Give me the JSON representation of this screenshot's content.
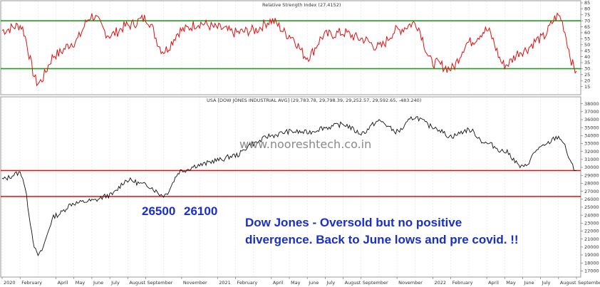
{
  "chart_data": [
    {
      "type": "line",
      "title": "Relative Strength Index (27.4152)",
      "ylim": [
        10,
        85
      ],
      "yticks": [
        15,
        20,
        25,
        30,
        35,
        40,
        45,
        50,
        55,
        60,
        65,
        70,
        75,
        80,
        85
      ],
      "reference_lines": [
        {
          "value": 70,
          "color": "#1e9e1e"
        },
        {
          "value": 30,
          "color": "#1e9e1e"
        }
      ],
      "series": [
        {
          "color": "#e01010",
          "x": [
            "2020-01",
            "2020-02",
            "2020-03",
            "2020-04",
            "2020-05",
            "2020-06",
            "2020-07",
            "2020-08",
            "2020-09",
            "2020-10",
            "2020-11",
            "2020-12",
            "2021-01",
            "2021-02",
            "2021-03",
            "2021-04",
            "2021-05",
            "2021-06",
            "2021-07",
            "2021-08",
            "2021-09",
            "2021-10",
            "2021-11",
            "2021-12",
            "2022-01",
            "2022-02",
            "2022-03",
            "2022-04",
            "2022-05",
            "2022-06",
            "2022-07",
            "2022-08",
            "2022-09"
          ],
          "values": [
            62,
            66,
            18,
            42,
            52,
            74,
            58,
            66,
            72,
            45,
            62,
            68,
            64,
            60,
            62,
            70,
            58,
            40,
            58,
            60,
            55,
            48,
            62,
            68,
            35,
            30,
            52,
            62,
            33,
            45,
            55,
            74,
            28
          ]
        }
      ]
    },
    {
      "type": "line",
      "title": "USA [DOW JONES INDUSTRIAL AVG] (29,783.78, 29,798.39, 29,252.57, 29,592.65, -483.240)",
      "ylim": [
        16500,
        38500
      ],
      "yticks": [
        17000,
        18000,
        19000,
        20000,
        21000,
        22000,
        23000,
        24000,
        25000,
        26000,
        27000,
        28000,
        29000,
        30000,
        31000,
        32000,
        33000,
        34000,
        35000,
        36000,
        37000,
        38000
      ],
      "xtick_labels": [
        "2020",
        "February",
        "April",
        "May",
        "June",
        "July",
        "August",
        "September",
        "November",
        "2021",
        "February",
        "April",
        "May",
        "June",
        "July",
        "August",
        "September",
        "November",
        "2022",
        "February",
        "April",
        "May",
        "June",
        "July",
        "August",
        "September"
      ],
      "reference_lines": [
        {
          "value": 29600,
          "color": "#e01010"
        },
        {
          "value": 26350,
          "color": "#e01010"
        }
      ],
      "series": [
        {
          "color": "#111111",
          "x": [
            "2020-01",
            "2020-02",
            "2020-03",
            "2020-04",
            "2020-05",
            "2020-06",
            "2020-07",
            "2020-08",
            "2020-09",
            "2020-10",
            "2020-11",
            "2020-12",
            "2021-01",
            "2021-02",
            "2021-03",
            "2021-04",
            "2021-05",
            "2021-06",
            "2021-07",
            "2021-08",
            "2021-09",
            "2021-10",
            "2021-11",
            "2021-12",
            "2022-01",
            "2022-02",
            "2022-03",
            "2022-04",
            "2022-05",
            "2022-06",
            "2022-07",
            "2022-08",
            "2022-09"
          ],
          "values": [
            28500,
            29300,
            19000,
            24000,
            25500,
            25800,
            26500,
            28400,
            27800,
            26500,
            29600,
            30300,
            30900,
            31500,
            33000,
            34000,
            34500,
            34400,
            35000,
            35400,
            34300,
            35800,
            34500,
            36300,
            35100,
            33900,
            34700,
            33000,
            32000,
            30000,
            32500,
            33800,
            29600
          ]
        }
      ]
    }
  ],
  "annotations": {
    "level_a": "26500",
    "level_b": "26100",
    "comment_line1": "Dow Jones - Oversold but no positive",
    "comment_line2": "divergence. Back to June lows and pre covid. !!",
    "watermark": "www.nooreshtech.co.in"
  }
}
